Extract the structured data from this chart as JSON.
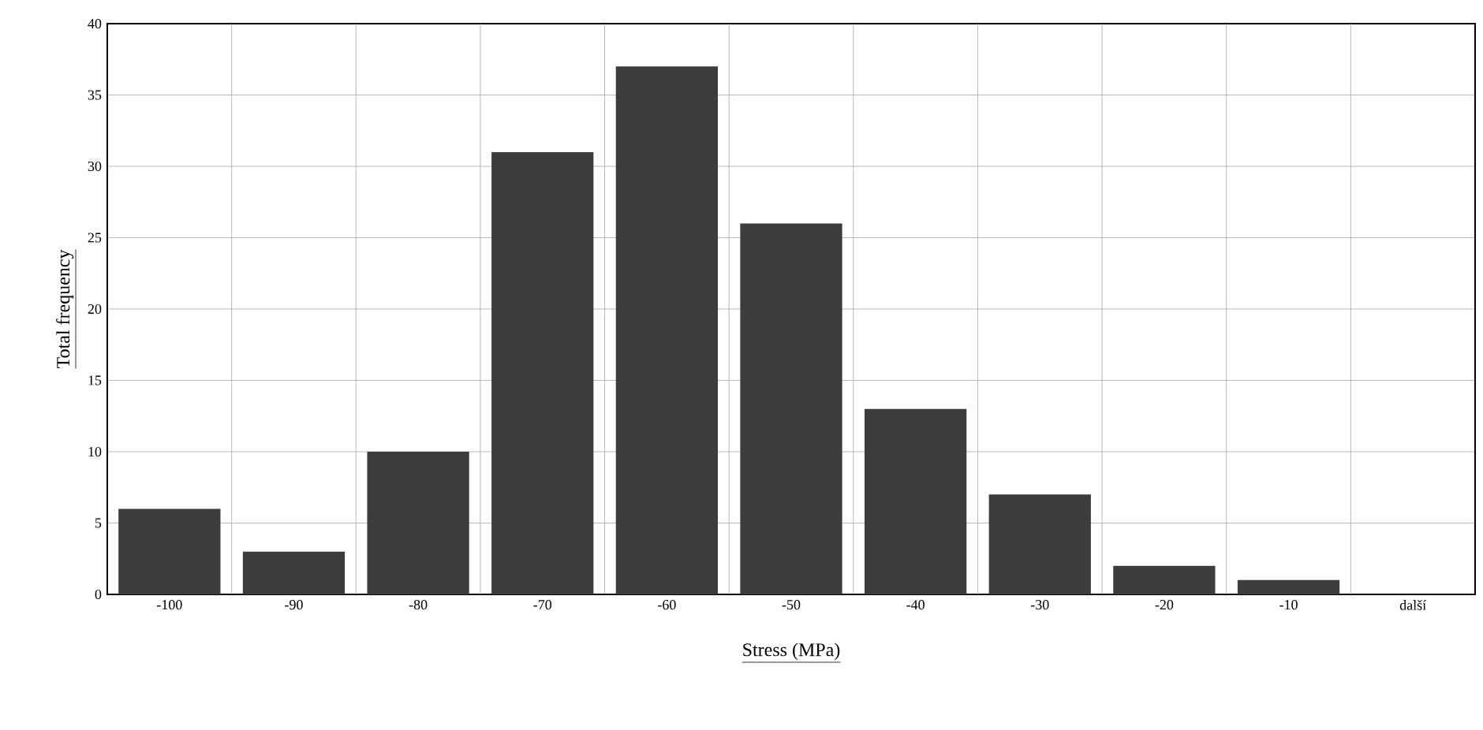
{
  "chart_data": {
    "type": "bar",
    "xlabel": "Stress  (MPa)",
    "ylabel": "Total frequency",
    "categories": [
      "-100",
      "-90",
      "-80",
      "-70",
      "-60",
      "-50",
      "-40",
      "-30",
      "-20",
      "-10",
      "další"
    ],
    "values": [
      6,
      3,
      10,
      31,
      37,
      26,
      13,
      7,
      2,
      1,
      0
    ],
    "color": "#3c3c3c",
    "ylim": [
      0,
      40
    ],
    "yticks": [
      0,
      5,
      10,
      15,
      20,
      25,
      30,
      35,
      40
    ],
    "grid": true
  }
}
